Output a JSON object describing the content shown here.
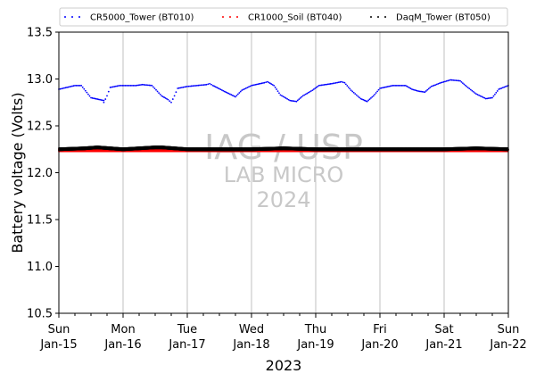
{
  "chart_data": {
    "type": "scatter",
    "xlabel": "2023",
    "ylabel": "Battery voltage (Volts)",
    "ylim": [
      10.5,
      13.5
    ],
    "yticks": [
      10.5,
      11.0,
      11.5,
      12.0,
      12.5,
      13.0,
      13.5
    ],
    "xlim_days": [
      0,
      7
    ],
    "x_ticks": [
      {
        "day": 0,
        "line1": "Sun",
        "line2": "Jan-15"
      },
      {
        "day": 1,
        "line1": "Mon",
        "line2": "Jan-16"
      },
      {
        "day": 2,
        "line1": "Tue",
        "line2": "Jan-17"
      },
      {
        "day": 3,
        "line1": "Wed",
        "line2": "Jan-18"
      },
      {
        "day": 4,
        "line1": "Thu",
        "line2": "Jan-19"
      },
      {
        "day": 5,
        "line1": "Fri",
        "line2": "Jan-20"
      },
      {
        "day": 6,
        "line1": "Sat",
        "line2": "Jan-21"
      },
      {
        "day": 7,
        "line1": "Sun",
        "line2": "Jan-22"
      }
    ],
    "grid": "vertical",
    "legend_position": "top",
    "watermark": {
      "line1": "IAG / USP",
      "line2": "LAB MICRO",
      "line3": "2024"
    },
    "series": [
      {
        "name": "CR5000_Tower (BT010)",
        "color": "#0000ff",
        "points": [
          [
            0.0,
            12.89
          ],
          [
            0.25,
            12.93
          ],
          [
            0.35,
            12.93
          ],
          [
            0.5,
            12.8
          ],
          [
            0.7,
            12.77
          ],
          [
            0.7,
            12.75
          ],
          [
            0.75,
            12.82
          ],
          [
            0.8,
            12.91
          ],
          [
            0.95,
            12.93
          ],
          [
            1.2,
            12.93
          ],
          [
            1.3,
            12.94
          ],
          [
            1.45,
            12.93
          ],
          [
            1.6,
            12.82
          ],
          [
            1.7,
            12.78
          ],
          [
            1.75,
            12.75
          ],
          [
            1.8,
            12.82
          ],
          [
            1.85,
            12.9
          ],
          [
            2.0,
            12.92
          ],
          [
            2.3,
            12.94
          ],
          [
            2.35,
            12.95
          ],
          [
            2.4,
            12.93
          ],
          [
            2.6,
            12.86
          ],
          [
            2.75,
            12.81
          ],
          [
            2.85,
            12.88
          ],
          [
            3.0,
            12.93
          ],
          [
            3.2,
            12.96
          ],
          [
            3.25,
            12.97
          ],
          [
            3.35,
            12.93
          ],
          [
            3.45,
            12.83
          ],
          [
            3.6,
            12.77
          ],
          [
            3.7,
            12.76
          ],
          [
            3.8,
            12.82
          ],
          [
            3.95,
            12.88
          ],
          [
            4.05,
            12.93
          ],
          [
            4.25,
            12.95
          ],
          [
            4.4,
            12.97
          ],
          [
            4.45,
            12.96
          ],
          [
            4.55,
            12.88
          ],
          [
            4.7,
            12.79
          ],
          [
            4.8,
            12.76
          ],
          [
            4.9,
            12.82
          ],
          [
            5.0,
            12.9
          ],
          [
            5.2,
            12.93
          ],
          [
            5.4,
            12.93
          ],
          [
            5.5,
            12.89
          ],
          [
            5.6,
            12.87
          ],
          [
            5.7,
            12.86
          ],
          [
            5.8,
            12.92
          ],
          [
            5.95,
            12.96
          ],
          [
            6.1,
            12.99
          ],
          [
            6.25,
            12.98
          ],
          [
            6.35,
            12.92
          ],
          [
            6.5,
            12.84
          ],
          [
            6.65,
            12.79
          ],
          [
            6.75,
            12.8
          ],
          [
            6.85,
            12.89
          ],
          [
            7.0,
            12.93
          ]
        ]
      },
      {
        "name": "CR1000_Soil (BT040)",
        "color": "#ff0000",
        "points": [
          [
            0.0,
            12.24
          ],
          [
            1.0,
            12.24
          ],
          [
            2.0,
            12.24
          ],
          [
            3.0,
            12.24
          ],
          [
            4.0,
            12.24
          ],
          [
            5.0,
            12.24
          ],
          [
            6.0,
            12.24
          ],
          [
            7.0,
            12.24
          ]
        ]
      },
      {
        "name": "DaqM_Tower (BT050)",
        "color": "#000000",
        "points": [
          [
            0.0,
            12.25
          ],
          [
            0.4,
            12.26
          ],
          [
            0.6,
            12.27
          ],
          [
            1.0,
            12.25
          ],
          [
            1.5,
            12.27
          ],
          [
            1.6,
            12.27
          ],
          [
            2.0,
            12.25
          ],
          [
            3.0,
            12.25
          ],
          [
            3.5,
            12.26
          ],
          [
            4.0,
            12.25
          ],
          [
            5.0,
            12.25
          ],
          [
            6.0,
            12.25
          ],
          [
            6.5,
            12.26
          ],
          [
            7.0,
            12.25
          ]
        ]
      }
    ]
  }
}
